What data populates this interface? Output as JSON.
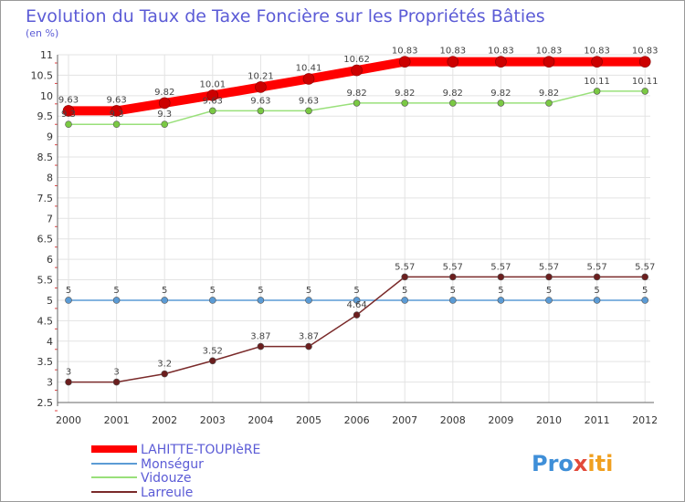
{
  "chart_data": {
    "type": "line",
    "title": "Evolution du Taux de Taxe Foncière sur les Propriétés Bâties",
    "subtitle": "(en %)",
    "x": [
      "2000",
      "2001",
      "2002",
      "2003",
      "2004",
      "2005",
      "2006",
      "2007",
      "2008",
      "2009",
      "2010",
      "2011",
      "2012"
    ],
    "ylim": [
      2.5,
      11
    ],
    "yticks": [
      "2.5",
      "3",
      "3.5",
      "4",
      "4.5",
      "5",
      "5.5",
      "6",
      "6.5",
      "7",
      "7.5",
      "8",
      "8.5",
      "9",
      "9.5",
      "10",
      "10.5",
      "11"
    ],
    "grid": true,
    "series": [
      {
        "name": "LAHITTE-TOUPIèRE",
        "color": "#ff0000",
        "values": [
          9.63,
          9.63,
          9.82,
          10.01,
          10.21,
          10.41,
          10.62,
          10.83,
          10.83,
          10.83,
          10.83,
          10.83,
          10.83
        ],
        "labels": [
          "9.63",
          "9.63",
          "9.82",
          "10.01",
          "10.21",
          "10.41",
          "10.62",
          "10.83",
          "10.83",
          "10.83",
          "10.83",
          "10.83",
          "10.83"
        ]
      },
      {
        "name": "Monségur",
        "color": "#5b9bd5",
        "values": [
          5,
          5,
          5,
          5,
          5,
          5,
          5,
          5,
          5,
          5,
          5,
          5,
          5
        ],
        "labels": [
          "5",
          "5",
          "5",
          "5",
          "5",
          "5",
          "5",
          "5",
          "5",
          "5",
          "5",
          "5",
          "5"
        ]
      },
      {
        "name": "Vidouze",
        "color": "#99e07a",
        "values": [
          9.3,
          9.3,
          9.3,
          9.63,
          9.63,
          9.63,
          9.82,
          9.82,
          9.82,
          9.82,
          9.82,
          10.11,
          10.11
        ],
        "labels": [
          "9.3",
          "9.3",
          "9.3",
          "9.63",
          "9.63",
          "9.63",
          "9.82",
          "9.82",
          "9.82",
          "9.82",
          "9.82",
          "10.11",
          "10.11"
        ]
      },
      {
        "name": "Larreule",
        "color": "#7a2a2a",
        "values": [
          3,
          3,
          3.2,
          3.52,
          3.87,
          3.87,
          4.64,
          5.57,
          5.57,
          5.57,
          5.57,
          5.57,
          5.57
        ],
        "labels": [
          "3",
          "3",
          "3.2",
          "3.52",
          "3.87",
          "3.87",
          "4.64",
          "5.57",
          "5.57",
          "5.57",
          "5.57",
          "5.57",
          "5.57"
        ]
      }
    ]
  },
  "brand": {
    "left": "Pro",
    "mid": "x",
    "right": "iti"
  }
}
